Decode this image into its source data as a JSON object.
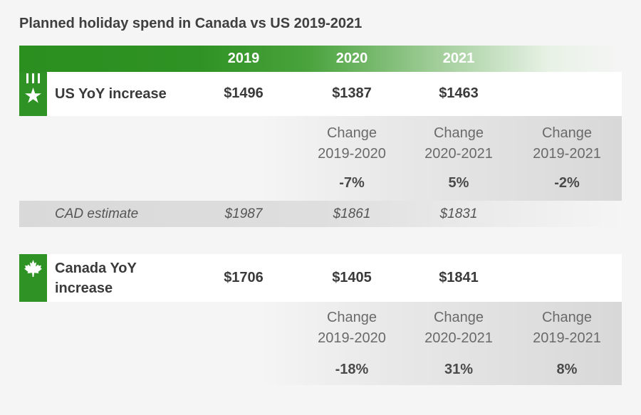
{
  "title": "Planned holiday spend in Canada vs US 2019-2021",
  "colors": {
    "brand_green": "#2f9224",
    "grey_band": "#d8d8d8",
    "text_dark": "#3a3a3a"
  },
  "chart_data": {
    "type": "table",
    "title": "Planned holiday spend in Canada vs US 2019-2021",
    "columns": [
      "2019",
      "2020",
      "2021"
    ],
    "sections": [
      {
        "id": "us",
        "icon": "us-flag-icon",
        "label": "US YoY increase",
        "values": [
          "$1496",
          "$1387",
          "$1463"
        ],
        "changes": [
          {
            "label_line1": "Change",
            "label_line2": "2019-2020",
            "value": "-7%"
          },
          {
            "label_line1": "Change",
            "label_line2": "2020-2021",
            "value": "5%"
          },
          {
            "label_line1": "Change",
            "label_line2": "2019-2021",
            "value": "-2%"
          }
        ],
        "cad_estimate": {
          "label": "CAD estimate",
          "values": [
            "$1987",
            "$1861",
            "$1831"
          ]
        }
      },
      {
        "id": "canada",
        "icon": "maple-leaf-icon",
        "label_line1": "Canada YoY",
        "label_line2": "increase",
        "values": [
          "$1706",
          "$1405",
          "$1841"
        ],
        "changes": [
          {
            "label_line1": "Change",
            "label_line2": "2019-2020",
            "value": "-18%"
          },
          {
            "label_line1": "Change",
            "label_line2": "2020-2021",
            "value": "31%"
          },
          {
            "label_line1": "Change",
            "label_line2": "2019-2021",
            "value": "8%"
          }
        ]
      }
    ]
  }
}
